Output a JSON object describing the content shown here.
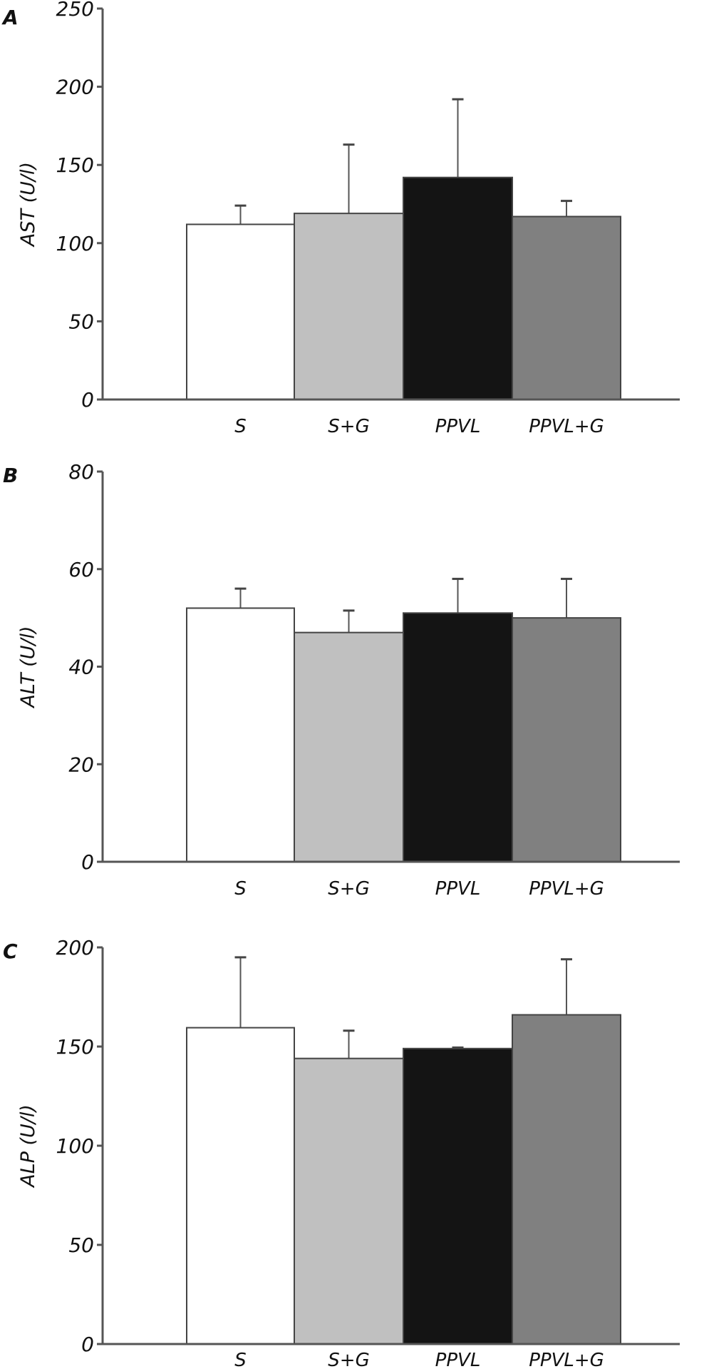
{
  "colors": {
    "S": "#ffffff",
    "S+G": "#c0c0c0",
    "PPVL": "#141414",
    "PPVL+G": "#808080",
    "axis": "#555555"
  },
  "chart_data": [
    {
      "type": "bar",
      "panel": "A",
      "ylabel": "AST (U/l)",
      "categories": [
        "S",
        "S+G",
        "PPVL",
        "PPVL+G"
      ],
      "values": [
        112,
        119,
        142,
        117
      ],
      "error_upper": [
        124,
        163,
        192,
        127
      ],
      "ylim": [
        0,
        250
      ],
      "yticks": [
        0,
        50,
        100,
        150,
        200,
        250
      ],
      "grid": false
    },
    {
      "type": "bar",
      "panel": "B",
      "ylabel": "ALT (U/l)",
      "categories": [
        "S",
        "S+G",
        "PPVL",
        "PPVL+G"
      ],
      "values": [
        52,
        47,
        51,
        50
      ],
      "error_upper": [
        56,
        51.5,
        58,
        58
      ],
      "ylim": [
        0,
        80
      ],
      "yticks": [
        0,
        20,
        40,
        60,
        80
      ],
      "grid": false
    },
    {
      "type": "bar",
      "panel": "C",
      "ylabel": "ALP (U/l)",
      "categories": [
        "S",
        "S+G",
        "PPVL",
        "PPVL+G"
      ],
      "values": [
        159.5,
        144,
        149,
        166
      ],
      "error_upper": [
        195,
        158,
        149.5,
        194
      ],
      "ylim": [
        0,
        200
      ],
      "yticks": [
        0,
        50,
        100,
        150,
        200
      ],
      "grid": false
    }
  ]
}
